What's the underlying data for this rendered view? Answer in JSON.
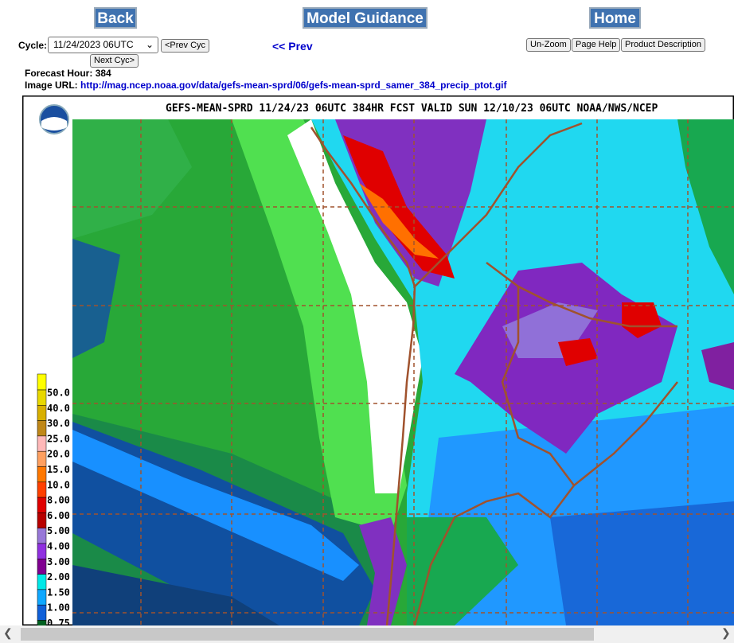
{
  "nav": {
    "back": "Back",
    "model_guidance": "Model Guidance",
    "home": "Home"
  },
  "cycle": {
    "label": "Cycle:",
    "selected": "11/24/2023 06UTC",
    "prev": "<Prev Cyc",
    "next": "Next Cyc>"
  },
  "prev_link": "<< Prev",
  "buttons": {
    "unzoom": "Un-Zoom",
    "help": "Page Help",
    "description": "Product Description"
  },
  "forecast_hour": {
    "label": "Forecast Hour:",
    "value": "384"
  },
  "image_url": {
    "label": "Image URL:",
    "url": "http://mag.ncep.noaa.gov/data/gefs-mean-sprd/06/gefs-mean-sprd_samer_384_precip_ptot.gif"
  },
  "map": {
    "title": "GEFS-MEAN-SPRD 11/24/23 06UTC 384HR FCST VALID SUN 12/10/23 06UTC NOAA/NWS/NCEP",
    "legend": [
      {
        "label": "50.0",
        "color": "#e8d800"
      },
      {
        "label": "40.0",
        "color": "#d8b000"
      },
      {
        "label": "30.0",
        "color": "#c08818"
      },
      {
        "label": "25.0",
        "color": "#ffb8b8"
      },
      {
        "label": "20.0",
        "color": "#ffa060"
      },
      {
        "label": "15.0",
        "color": "#ff7800"
      },
      {
        "label": "10.0",
        "color": "#ff4000"
      },
      {
        "label": "8.00",
        "color": "#e00000"
      },
      {
        "label": "6.00",
        "color": "#b80000"
      },
      {
        "label": "5.00",
        "color": "#9878d8"
      },
      {
        "label": "4.00",
        "color": "#9030e0"
      },
      {
        "label": "3.00",
        "color": "#800090"
      },
      {
        "label": "2.00",
        "color": "#00e8e8"
      },
      {
        "label": "1.50",
        "color": "#10a8ff"
      },
      {
        "label": "1.00",
        "color": "#1060d8"
      },
      {
        "label": "0.75",
        "color": "#006020"
      }
    ]
  }
}
